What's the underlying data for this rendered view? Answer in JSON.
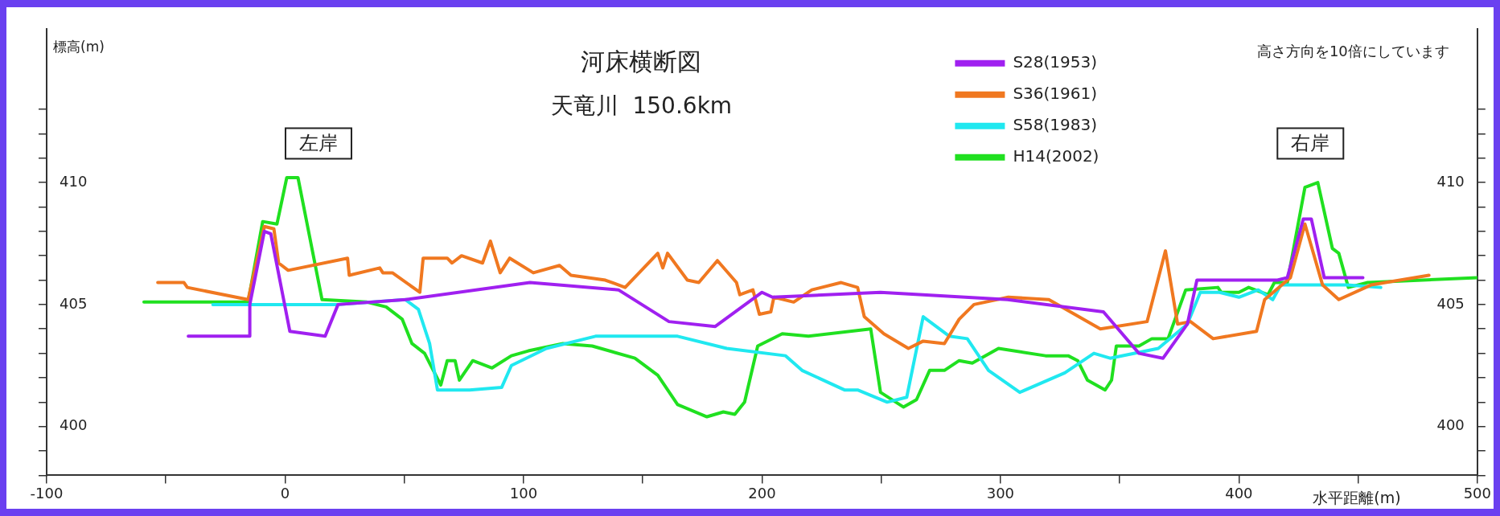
{
  "chart_data": {
    "type": "line",
    "title": "河床横断図",
    "subtitle": "天竜川  150.6km",
    "xlabel": "水平距離(m)",
    "ylabel": "標高(m)",
    "annotations": [
      "高さ方向を10倍にしています",
      "左岸",
      "右岸"
    ],
    "xlim": [
      -100,
      500
    ],
    "xticks": [
      -100,
      {
        "value": -50,
        "label": null
      },
      0,
      {
        "value": 50,
        "label": null
      },
      100,
      {
        "value": 150,
        "label": null
      },
      200,
      {
        "value": 250,
        "label": null
      },
      300,
      {
        "value": 350,
        "label": null
      },
      400,
      {
        "value": 450,
        "label": null
      },
      500
    ],
    "ylim": [
      398,
      416.3
    ],
    "yticks": [
      {
        "value": 398,
        "label": null
      },
      {
        "value": 399,
        "label": null
      },
      400,
      {
        "value": 401,
        "label": null
      },
      {
        "value": 402,
        "label": null
      },
      {
        "value": 403,
        "label": null
      },
      {
        "value": 404,
        "label": null
      },
      405,
      {
        "value": 406,
        "label": null
      },
      {
        "value": 407,
        "label": null
      },
      {
        "value": 408,
        "label": null
      },
      {
        "value": 409,
        "label": null
      },
      410,
      {
        "value": 411,
        "label": null
      },
      {
        "value": 412,
        "label": null
      },
      {
        "value": 413,
        "label": null
      }
    ],
    "y2lim": [
      398,
      416.3
    ],
    "y2ticks": [
      {
        "value": 398,
        "label": null
      },
      {
        "value": 399,
        "label": null
      },
      400,
      {
        "value": 401,
        "label": null
      },
      {
        "value": 402,
        "label": null
      },
      {
        "value": 403,
        "label": null
      },
      {
        "value": 404,
        "label": null
      },
      405,
      {
        "value": 406,
        "label": null
      },
      {
        "value": 407,
        "label": null
      },
      {
        "value": 408,
        "label": null
      },
      {
        "value": 409,
        "label": null
      },
      410,
      {
        "value": 411,
        "label": null
      },
      {
        "value": 412,
        "label": null
      },
      {
        "value": 413,
        "label": null
      }
    ],
    "grid": false,
    "legend": "top",
    "marker": "none",
    "line_style": "solid",
    "series": [
      {
        "name": "S28(1953)",
        "color": "#a020f0",
        "x": [
          -40.6,
          -14.8,
          -14.8,
          -8.7,
          -6,
          2,
          16.8,
          22.2,
          50.5,
          102.7,
          139.8,
          161,
          180.4,
          200,
          204.4,
          249.7,
          303,
          343.2,
          358.1,
          368.2,
          378.4,
          382.4,
          416.2,
          420.3,
          427,
          430.4,
          435.8,
          452
        ],
        "values": [
          403.7,
          403.7,
          405,
          408,
          407.9,
          403.9,
          403.7,
          405,
          405.2,
          405.9,
          405.6,
          404.3,
          404.1,
          405.5,
          405.3,
          405.5,
          405.2,
          404.7,
          403,
          402.8,
          404.2,
          406,
          406,
          406.1,
          408.5,
          408.5,
          406.1,
          406.1
        ]
      },
      {
        "name": "S36(1961)",
        "color": "#f07820",
        "x": [
          -53.4,
          -42.4,
          -41,
          -15.5,
          -8.7,
          -4.7,
          -2.7,
          1.3,
          26.2,
          26.9,
          39.7,
          41,
          45,
          56.5,
          57.9,
          68,
          70,
          74,
          82.8,
          86.1,
          90.2,
          94.2,
          104.1,
          115.1,
          119.9,
          134.3,
          142.6,
          156.3,
          158.4,
          160.4,
          168.7,
          173.5,
          181.3,
          189.3,
          190.7,
          196.2,
          198.9,
          203.7,
          205,
          213.3,
          220.9,
          233.2,
          240.1,
          242.9,
          251.1,
          261.4,
          267.6,
          276.5,
          282.7,
          288.9,
          303.3,
          320.3,
          341.9,
          361.5,
          369.2,
          374.3,
          379.7,
          389.2,
          407.4,
          410.8,
          421.6,
          427.7,
          435.1,
          441.9,
          455.4,
          479.7
        ],
        "values": [
          405.9,
          405.9,
          405.7,
          405.2,
          408.2,
          408.1,
          406.7,
          406.4,
          406.9,
          406.2,
          406.5,
          406.3,
          406.3,
          405.5,
          406.9,
          406.9,
          406.7,
          407,
          406.7,
          407.6,
          406.3,
          406.9,
          406.3,
          406.6,
          406.2,
          406,
          405.7,
          407.1,
          406.5,
          407.1,
          406,
          405.9,
          406.8,
          405.9,
          405.4,
          405.6,
          404.6,
          404.7,
          405.3,
          405.1,
          405.6,
          405.9,
          405.7,
          404.5,
          403.8,
          403.2,
          403.5,
          403.4,
          404.4,
          405,
          405.3,
          405.2,
          404,
          404.3,
          407.2,
          404.2,
          404.3,
          403.6,
          403.9,
          405.2,
          406.1,
          408.3,
          405.8,
          405.2,
          405.8,
          406.2
        ]
      },
      {
        "name": "S58(1983)",
        "color": "#20e8f0",
        "x": [
          -30.3,
          -15.5,
          15.5,
          22.2,
          50.5,
          55.9,
          60.6,
          63.9,
          77.4,
          90.8,
          94.9,
          109.6,
          130.2,
          164.6,
          185.2,
          209.9,
          216.8,
          234.6,
          240.1,
          252.5,
          260.7,
          267.6,
          278.6,
          286.1,
          295,
          308.1,
          327,
          339.2,
          346,
          366.2,
          378.4,
          383.8,
          391.9,
          400,
          408.1,
          414.2,
          417.6,
          420.9,
          445.3,
          459.5
        ],
        "values": [
          405,
          405,
          405,
          405,
          405.2,
          404.8,
          403.4,
          401.5,
          401.5,
          401.6,
          402.5,
          403.2,
          403.7,
          403.7,
          403.2,
          402.9,
          402.3,
          401.5,
          401.5,
          401,
          401.2,
          404.5,
          403.7,
          403.6,
          402.3,
          401.4,
          402.2,
          403,
          402.8,
          403.2,
          404.2,
          405.5,
          405.5,
          405.3,
          405.6,
          405.2,
          405.8,
          405.8,
          405.8,
          405.7
        ]
      },
      {
        "name": "H14(2002)",
        "color": "#20e020",
        "x": [
          -59.2,
          -15.5,
          -9.4,
          -3.4,
          0.7,
          5.4,
          15.5,
          34.3,
          42.4,
          49.1,
          53.2,
          58.5,
          65.3,
          68,
          71.3,
          73.1,
          78.7,
          86.8,
          94.9,
          102,
          116.5,
          128.8,
          146.7,
          156.3,
          164.6,
          176.9,
          183.8,
          188.6,
          192.7,
          198.2,
          208.5,
          219.5,
          245.6,
          249.7,
          259.3,
          264.8,
          270.3,
          276.5,
          282.7,
          288.2,
          299.2,
          318.9,
          328.4,
          332.4,
          336.5,
          343.9,
          346.6,
          348.6,
          358.1,
          363.5,
          370.3,
          377.7,
          391.2,
          392.6,
          400,
          404.1,
          412.2,
          414.9,
          420.3,
          427.7,
          433.1,
          439.2,
          441.9,
          445.9,
          454,
          500
        ],
        "values": [
          405.1,
          405.1,
          408.4,
          408.3,
          410.2,
          410.2,
          405.2,
          405.1,
          404.9,
          404.4,
          403.4,
          403,
          401.7,
          402.7,
          402.7,
          401.9,
          402.7,
          402.4,
          402.9,
          403.1,
          403.4,
          403.3,
          402.8,
          402.1,
          400.9,
          400.4,
          400.6,
          400.5,
          401,
          403.3,
          403.8,
          403.7,
          404,
          401.4,
          400.8,
          401.1,
          402.3,
          402.3,
          402.7,
          402.6,
          403.2,
          402.9,
          402.9,
          402.7,
          401.9,
          401.5,
          401.9,
          403.3,
          403.3,
          403.6,
          403.6,
          405.6,
          405.7,
          405.5,
          405.5,
          405.7,
          405.4,
          405.9,
          405.9,
          409.8,
          410,
          407.3,
          407.1,
          405.7,
          405.9,
          406.1
        ]
      }
    ]
  }
}
